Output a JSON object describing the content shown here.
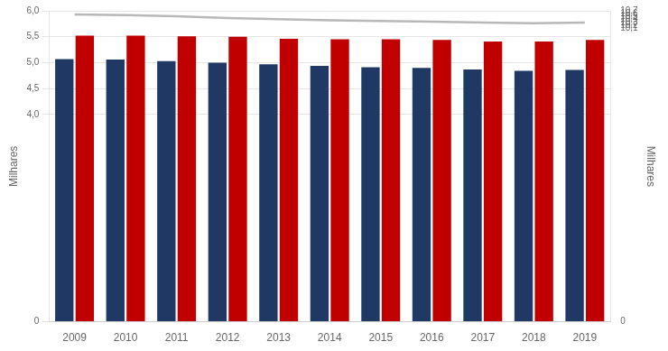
{
  "chart_data": {
    "type": "bar",
    "categories": [
      "2009",
      "2010",
      "2011",
      "2012",
      "2013",
      "2014",
      "2015",
      "2016",
      "2017",
      "2018",
      "2019"
    ],
    "series": [
      {
        "color": "#1f3864",
        "values": [
          5.07,
          5.06,
          5.03,
          5.0,
          4.97,
          4.94,
          4.91,
          4.9,
          4.87,
          4.84,
          4.86
        ]
      },
      {
        "color": "#c00000",
        "values": [
          5.52,
          5.52,
          5.51,
          5.5,
          5.46,
          5.45,
          5.45,
          5.44,
          5.41,
          5.41,
          5.44
        ]
      },
      {
        "type": "line",
        "axis": "y2",
        "color": "#b8b8b8",
        "marker": "none",
        "values": [
          10.575,
          10.555,
          10.51,
          10.455,
          10.415,
          10.374,
          10.35,
          10.325,
          10.295,
          10.27,
          10.295
        ]
      }
    ],
    "ylabel": "Milhares",
    "y2label": "Milhares",
    "ylim": [
      0,
      6.0
    ],
    "yticks": [
      0,
      {
        "value": 4.0,
        "label": "4,0"
      },
      {
        "value": 4.5,
        "label": "4,5"
      },
      {
        "value": 5.0,
        "label": "5,0"
      },
      {
        "value": 5.5,
        "label": "5,5"
      },
      {
        "value": 6.0,
        "label": "6,0"
      }
    ],
    "y2lim": [
      0,
      10.7
    ],
    "y2ticks": [
      0,
      {
        "value": 10.1,
        "label": "10,1"
      },
      {
        "value": 10.2,
        "label": "10,2"
      },
      {
        "value": 10.3,
        "label": "10,3"
      },
      {
        "value": 10.4,
        "label": "10,4"
      },
      {
        "value": 10.5,
        "label": "10,5"
      },
      {
        "value": 10.6,
        "label": "10,6"
      },
      {
        "value": 10.7,
        "label": "10,7"
      }
    ],
    "grid": true
  }
}
